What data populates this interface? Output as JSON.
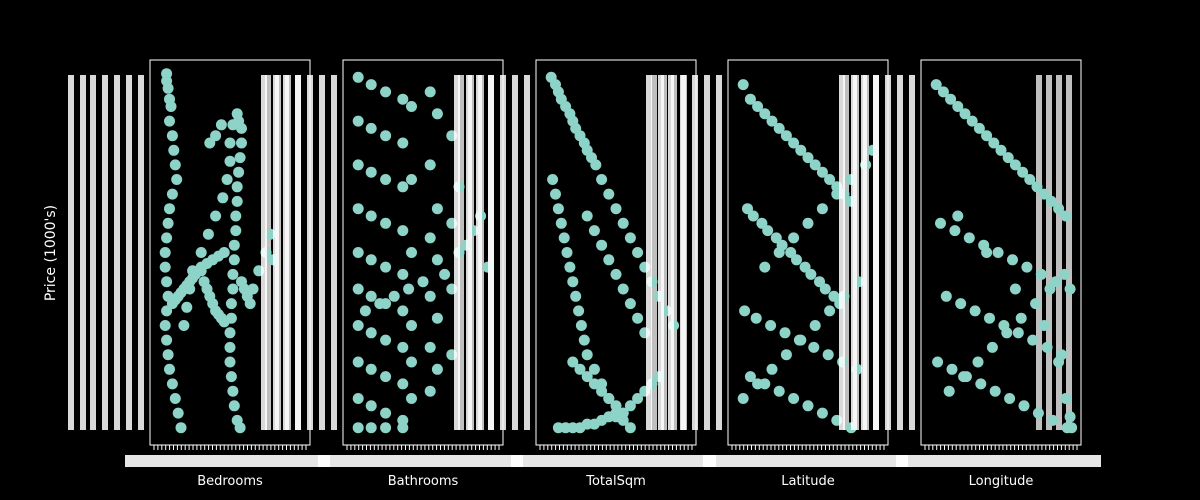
{
  "figure": {
    "background": "#000000",
    "ylabel": "Price (1000's)"
  },
  "colors": {
    "marker": "#8dd3c7",
    "frame": "#ffffff",
    "text": "#ffffff"
  },
  "chart_data": [
    {
      "type": "scatter",
      "xlabel": "Bedrooms",
      "x_tick_labels_note": "dense overlapping categorical tick labels (illegible)",
      "ylabel": "Price (1000's)",
      "series": [
        {
          "x": [
            0.06,
            0.06,
            0.07,
            0.08,
            0.09,
            0.08,
            0.1,
            0.11,
            0.12,
            0.13,
            0.1,
            0.08,
            0.07,
            0.06,
            0.05,
            0.05,
            0.06,
            0.07,
            0.06,
            0.05,
            0.06,
            0.07,
            0.08,
            0.1,
            0.12,
            0.14,
            0.16,
            0.18,
            0.2,
            0.22,
            0.24,
            0.3,
            0.35,
            0.4,
            0.45,
            0.48,
            0.5,
            0.5,
            0.52,
            0.55,
            0.56,
            0.58,
            0.58,
            0.57,
            0.56,
            0.55,
            0.55,
            0.54,
            0.54,
            0.53,
            0.53,
            0.52,
            0.52,
            0.51,
            0.51,
            0.5,
            0.5,
            0.5,
            0.51,
            0.52,
            0.53,
            0.55,
            0.57,
            0.58,
            0.6,
            0.62,
            0.64,
            0.66,
            0.7,
            0.75,
            0.78,
            0.8,
            0.3,
            0.32,
            0.34,
            0.36,
            0.38,
            0.4,
            0.42,
            0.44,
            0.46,
            0.1,
            0.12,
            0.14,
            0.16,
            0.18,
            0.2,
            0.22,
            0.24,
            0.26,
            0.28,
            0.3,
            0.34,
            0.38,
            0.42,
            0.46,
            0.36,
            0.4,
            0.44
          ],
          "y": [
            0.99,
            0.97,
            0.95,
            0.92,
            0.9,
            0.86,
            0.82,
            0.78,
            0.74,
            0.7,
            0.66,
            0.62,
            0.58,
            0.54,
            0.5,
            0.46,
            0.42,
            0.38,
            0.34,
            0.3,
            0.26,
            0.22,
            0.18,
            0.14,
            0.1,
            0.06,
            0.02,
            0.3,
            0.35,
            0.4,
            0.45,
            0.5,
            0.55,
            0.6,
            0.65,
            0.7,
            0.75,
            0.8,
            0.85,
            0.88,
            0.86,
            0.84,
            0.8,
            0.76,
            0.72,
            0.68,
            0.64,
            0.6,
            0.56,
            0.52,
            0.48,
            0.44,
            0.4,
            0.36,
            0.32,
            0.28,
            0.24,
            0.2,
            0.16,
            0.12,
            0.08,
            0.04,
            0.02,
            0.42,
            0.4,
            0.38,
            0.36,
            0.4,
            0.45,
            0.5,
            0.55,
            0.48,
            0.45,
            0.42,
            0.4,
            0.38,
            0.36,
            0.34,
            0.33,
            0.32,
            0.31,
            0.36,
            0.37,
            0.38,
            0.39,
            0.4,
            0.41,
            0.42,
            0.43,
            0.44,
            0.45,
            0.46,
            0.47,
            0.48,
            0.49,
            0.5,
            0.8,
            0.82,
            0.85
          ]
        }
      ]
    },
    {
      "type": "scatter",
      "xlabel": "Bathrooms",
      "x_tick_labels_note": "dense overlapping categorical tick labels (illegible)",
      "ylabel": "Price (1000's)",
      "series": [
        {
          "x": [
            0.05,
            0.05,
            0.05,
            0.05,
            0.05,
            0.05,
            0.05,
            0.05,
            0.05,
            0.05,
            0.14,
            0.14,
            0.14,
            0.14,
            0.14,
            0.14,
            0.14,
            0.14,
            0.14,
            0.14,
            0.24,
            0.24,
            0.24,
            0.24,
            0.24,
            0.24,
            0.24,
            0.24,
            0.24,
            0.24,
            0.36,
            0.36,
            0.36,
            0.36,
            0.36,
            0.36,
            0.36,
            0.36,
            0.36,
            0.36,
            0.42,
            0.42,
            0.42,
            0.42,
            0.42,
            0.42,
            0.55,
            0.55,
            0.55,
            0.55,
            0.55,
            0.55,
            0.6,
            0.6,
            0.6,
            0.6,
            0.6,
            0.7,
            0.7,
            0.7,
            0.7,
            0.75,
            0.75,
            0.8,
            0.85,
            0.9,
            0.95,
            0.65,
            0.5,
            0.4,
            0.3,
            0.2,
            0.1
          ],
          "y": [
            0.98,
            0.86,
            0.74,
            0.62,
            0.5,
            0.4,
            0.3,
            0.2,
            0.1,
            0.02,
            0.96,
            0.84,
            0.72,
            0.6,
            0.48,
            0.38,
            0.28,
            0.18,
            0.08,
            0.02,
            0.94,
            0.82,
            0.7,
            0.58,
            0.46,
            0.36,
            0.26,
            0.16,
            0.06,
            0.02,
            0.92,
            0.8,
            0.68,
            0.56,
            0.44,
            0.34,
            0.24,
            0.14,
            0.04,
            0.02,
            0.9,
            0.7,
            0.5,
            0.3,
            0.2,
            0.1,
            0.94,
            0.74,
            0.54,
            0.38,
            0.24,
            0.12,
            0.88,
            0.62,
            0.48,
            0.32,
            0.18,
            0.82,
            0.58,
            0.4,
            0.22,
            0.68,
            0.5,
            0.52,
            0.56,
            0.6,
            0.46,
            0.44,
            0.42,
            0.4,
            0.38,
            0.36,
            0.34
          ]
        }
      ]
    },
    {
      "type": "scatter",
      "xlabel": "TotalSqm",
      "x_tick_labels_note": "dense overlapping numeric tick labels (illegible)",
      "ylabel": "Price (1000's)",
      "series": [
        {
          "x": [
            0.05,
            0.08,
            0.1,
            0.12,
            0.15,
            0.18,
            0.2,
            0.22,
            0.25,
            0.28,
            0.3,
            0.33,
            0.36,
            0.4,
            0.45,
            0.5,
            0.55,
            0.6,
            0.65,
            0.7,
            0.75,
            0.8,
            0.85,
            0.9,
            0.06,
            0.08,
            0.1,
            0.12,
            0.14,
            0.16,
            0.18,
            0.2,
            0.22,
            0.24,
            0.26,
            0.28,
            0.3,
            0.35,
            0.4,
            0.45,
            0.5,
            0.55,
            0.6,
            0.3,
            0.35,
            0.4,
            0.45,
            0.5,
            0.55,
            0.6,
            0.65,
            0.7,
            0.2,
            0.25,
            0.3,
            0.35,
            0.4,
            0.45,
            0.5,
            0.55,
            0.1,
            0.15,
            0.2,
            0.25,
            0.3,
            0.35,
            0.4,
            0.45,
            0.5,
            0.55,
            0.6,
            0.65,
            0.7,
            0.75,
            0.8
          ],
          "y": [
            0.98,
            0.96,
            0.94,
            0.92,
            0.9,
            0.88,
            0.86,
            0.84,
            0.82,
            0.8,
            0.78,
            0.76,
            0.74,
            0.7,
            0.66,
            0.62,
            0.58,
            0.54,
            0.5,
            0.46,
            0.42,
            0.38,
            0.34,
            0.3,
            0.7,
            0.66,
            0.62,
            0.58,
            0.54,
            0.5,
            0.46,
            0.42,
            0.38,
            0.34,
            0.3,
            0.26,
            0.22,
            0.18,
            0.14,
            0.1,
            0.06,
            0.04,
            0.02,
            0.6,
            0.56,
            0.52,
            0.48,
            0.44,
            0.4,
            0.36,
            0.32,
            0.28,
            0.2,
            0.18,
            0.16,
            0.14,
            0.12,
            0.1,
            0.08,
            0.06,
            0.02,
            0.02,
            0.02,
            0.02,
            0.03,
            0.03,
            0.04,
            0.05,
            0.05,
            0.06,
            0.08,
            0.1,
            0.12,
            0.14,
            0.16
          ]
        }
      ]
    },
    {
      "type": "scatter",
      "xlabel": "Latitude",
      "x_tick_labels_note": "dense overlapping numeric tick labels (illegible)",
      "ylabel": "Price (1000's)",
      "series": [
        {
          "x": [
            0.05,
            0.1,
            0.15,
            0.2,
            0.25,
            0.3,
            0.35,
            0.4,
            0.45,
            0.5,
            0.55,
            0.6,
            0.65,
            0.7,
            0.75,
            0.8,
            0.08,
            0.12,
            0.18,
            0.22,
            0.28,
            0.32,
            0.38,
            0.42,
            0.48,
            0.52,
            0.58,
            0.62,
            0.68,
            0.72,
            0.06,
            0.14,
            0.24,
            0.34,
            0.44,
            0.54,
            0.64,
            0.74,
            0.84,
            0.1,
            0.2,
            0.3,
            0.4,
            0.5,
            0.6,
            0.7,
            0.8,
            0.05,
            0.15,
            0.25,
            0.35,
            0.45,
            0.55,
            0.65,
            0.75,
            0.85,
            0.2,
            0.3,
            0.4,
            0.5,
            0.6,
            0.7,
            0.8,
            0.9,
            0.95
          ],
          "y": [
            0.96,
            0.92,
            0.9,
            0.88,
            0.86,
            0.84,
            0.82,
            0.8,
            0.78,
            0.76,
            0.74,
            0.72,
            0.7,
            0.68,
            0.66,
            0.64,
            0.62,
            0.6,
            0.58,
            0.56,
            0.54,
            0.52,
            0.5,
            0.48,
            0.46,
            0.44,
            0.42,
            0.4,
            0.38,
            0.36,
            0.34,
            0.32,
            0.3,
            0.28,
            0.26,
            0.24,
            0.22,
            0.2,
            0.18,
            0.16,
            0.14,
            0.12,
            0.1,
            0.08,
            0.06,
            0.04,
            0.02,
            0.1,
            0.14,
            0.18,
            0.22,
            0.26,
            0.3,
            0.34,
            0.38,
            0.42,
            0.46,
            0.5,
            0.54,
            0.58,
            0.62,
            0.66,
            0.7,
            0.74,
            0.78
          ]
        }
      ]
    },
    {
      "type": "scatter",
      "xlabel": "Longitude",
      "x_tick_labels_note": "dense overlapping numeric tick labels (illegible)",
      "ylabel": "Price (1000's)",
      "series": [
        {
          "x": [
            0.05,
            0.1,
            0.15,
            0.2,
            0.25,
            0.3,
            0.35,
            0.4,
            0.45,
            0.5,
            0.55,
            0.6,
            0.65,
            0.7,
            0.75,
            0.8,
            0.85,
            0.9,
            0.95,
            0.08,
            0.18,
            0.28,
            0.38,
            0.48,
            0.58,
            0.68,
            0.78,
            0.88,
            0.98,
            0.12,
            0.22,
            0.32,
            0.42,
            0.52,
            0.62,
            0.72,
            0.82,
            0.92,
            0.06,
            0.16,
            0.26,
            0.36,
            0.46,
            0.56,
            0.66,
            0.76,
            0.86,
            0.96,
            0.14,
            0.24,
            0.34,
            0.44,
            0.54,
            0.64,
            0.74,
            0.84,
            0.94,
            0.2,
            0.4,
            0.6,
            0.8,
            0.9,
            0.95,
            0.98,
            0.99
          ],
          "y": [
            0.96,
            0.94,
            0.92,
            0.9,
            0.88,
            0.86,
            0.84,
            0.82,
            0.8,
            0.78,
            0.76,
            0.74,
            0.72,
            0.7,
            0.68,
            0.66,
            0.64,
            0.62,
            0.6,
            0.58,
            0.56,
            0.54,
            0.52,
            0.5,
            0.48,
            0.46,
            0.44,
            0.42,
            0.4,
            0.38,
            0.36,
            0.34,
            0.32,
            0.3,
            0.28,
            0.26,
            0.24,
            0.22,
            0.2,
            0.18,
            0.16,
            0.14,
            0.12,
            0.1,
            0.08,
            0.06,
            0.04,
            0.02,
            0.12,
            0.16,
            0.2,
            0.24,
            0.28,
            0.32,
            0.36,
            0.4,
            0.44,
            0.6,
            0.5,
            0.4,
            0.3,
            0.2,
            0.1,
            0.05,
            0.02
          ]
        }
      ]
    }
  ]
}
